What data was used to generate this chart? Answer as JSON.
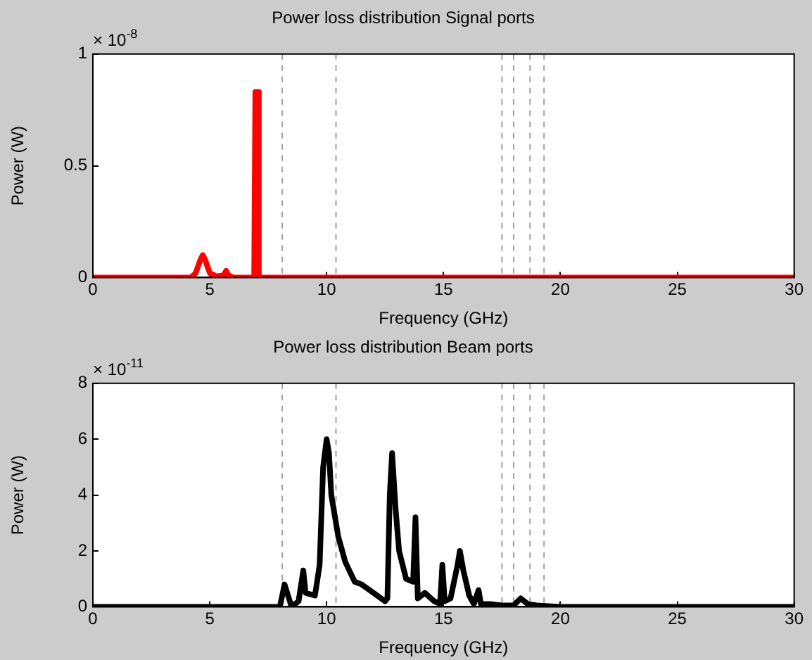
{
  "chart_data": [
    {
      "type": "line",
      "title": "Power loss distribution Signal ports",
      "xlabel": "Frequency (GHz)",
      "ylabel": "Power (W)",
      "annotations": [
        "× 10$^{-8}$"
      ],
      "xlim": [
        0,
        30
      ],
      "xticks": [
        0,
        5,
        10,
        15,
        20,
        25,
        30
      ],
      "ylim": [
        0,
        1
      ],
      "yticks": [
        0,
        0.5,
        1
      ],
      "grid": false,
      "legend": false,
      "marker": "none",
      "line_style": "solid",
      "series": [
        {
          "color": "#ff0000",
          "x": [
            0,
            4.2,
            4.4,
            4.6,
            4.7,
            4.8,
            5.0,
            5.3,
            5.6,
            5.7,
            5.8,
            6.0,
            6.9,
            6.95,
            7.05,
            7.1,
            30
          ],
          "values": [
            0,
            0,
            0.02,
            0.08,
            0.1,
            0.08,
            0.02,
            0.005,
            0.01,
            0.03,
            0.01,
            0,
            0,
            0.83,
            0.83,
            0,
            0
          ]
        }
      ],
      "ref_lines": [
        {
          "axis": "x",
          "value": 8.1,
          "color": "#a0a0a0",
          "line_style": "dashed"
        },
        {
          "axis": "x",
          "value": 10.4,
          "color": "#a0a0a0",
          "line_style": "dashed"
        },
        {
          "axis": "x",
          "value": 17.5,
          "color": "#a0a0a0",
          "line_style": "dashed"
        },
        {
          "axis": "x",
          "value": 18.0,
          "color": "#a0a0a0",
          "line_style": "dashed"
        },
        {
          "axis": "x",
          "value": 18.7,
          "color": "#a0a0a0",
          "line_style": "dashed"
        },
        {
          "axis": "x",
          "value": 19.3,
          "color": "#a0a0a0",
          "line_style": "dashed"
        }
      ]
    },
    {
      "type": "line",
      "title": "Power loss distribution Beam ports",
      "xlabel": "Frequency (GHz)",
      "ylabel": "Power (W)",
      "annotations": [
        "× 10$^{-11}$"
      ],
      "xlim": [
        0,
        30
      ],
      "xticks": [
        0,
        5,
        10,
        15,
        20,
        25,
        30
      ],
      "ylim": [
        0,
        8
      ],
      "yticks": [
        0,
        2,
        4,
        6,
        8
      ],
      "grid": false,
      "legend": false,
      "marker": "none",
      "line_style": "solid",
      "series": [
        {
          "color": "#000000",
          "x": [
            0,
            8.0,
            8.2,
            8.5,
            8.8,
            9.0,
            9.1,
            9.5,
            9.7,
            9.85,
            10.0,
            10.1,
            10.2,
            10.5,
            10.8,
            11.2,
            11.5,
            12.0,
            12.5,
            12.6,
            12.7,
            12.8,
            12.95,
            13.1,
            13.4,
            13.7,
            13.8,
            13.9,
            14.2,
            14.6,
            14.85,
            14.95,
            15.05,
            15.3,
            15.6,
            15.7,
            15.85,
            16.1,
            16.3,
            16.5,
            16.6,
            17.0,
            17.5,
            18.0,
            18.3,
            18.6,
            19.0,
            20,
            30
          ],
          "values": [
            0,
            0,
            0.8,
            0,
            0.2,
            1.3,
            0.5,
            0.4,
            1.5,
            5.0,
            6.0,
            5.5,
            4.0,
            2.5,
            1.6,
            0.9,
            0.8,
            0.5,
            0.2,
            0.3,
            4.0,
            5.5,
            3.5,
            2.0,
            1.0,
            0.9,
            3.2,
            0.3,
            0.5,
            0.2,
            0.1,
            1.5,
            0.2,
            0.3,
            1.5,
            2.0,
            1.3,
            0.4,
            0.1,
            0.6,
            0.1,
            0.1,
            0.05,
            0.05,
            0.3,
            0.1,
            0.05,
            0,
            0
          ]
        }
      ],
      "ref_lines": [
        {
          "axis": "x",
          "value": 8.1,
          "color": "#a0a0a0",
          "line_style": "dashed"
        },
        {
          "axis": "x",
          "value": 10.4,
          "color": "#a0a0a0",
          "line_style": "dashed"
        },
        {
          "axis": "x",
          "value": 17.5,
          "color": "#a0a0a0",
          "line_style": "dashed"
        },
        {
          "axis": "x",
          "value": 18.0,
          "color": "#a0a0a0",
          "line_style": "dashed"
        },
        {
          "axis": "x",
          "value": 18.7,
          "color": "#a0a0a0",
          "line_style": "dashed"
        },
        {
          "axis": "x",
          "value": 19.3,
          "color": "#a0a0a0",
          "line_style": "dashed"
        }
      ]
    }
  ]
}
